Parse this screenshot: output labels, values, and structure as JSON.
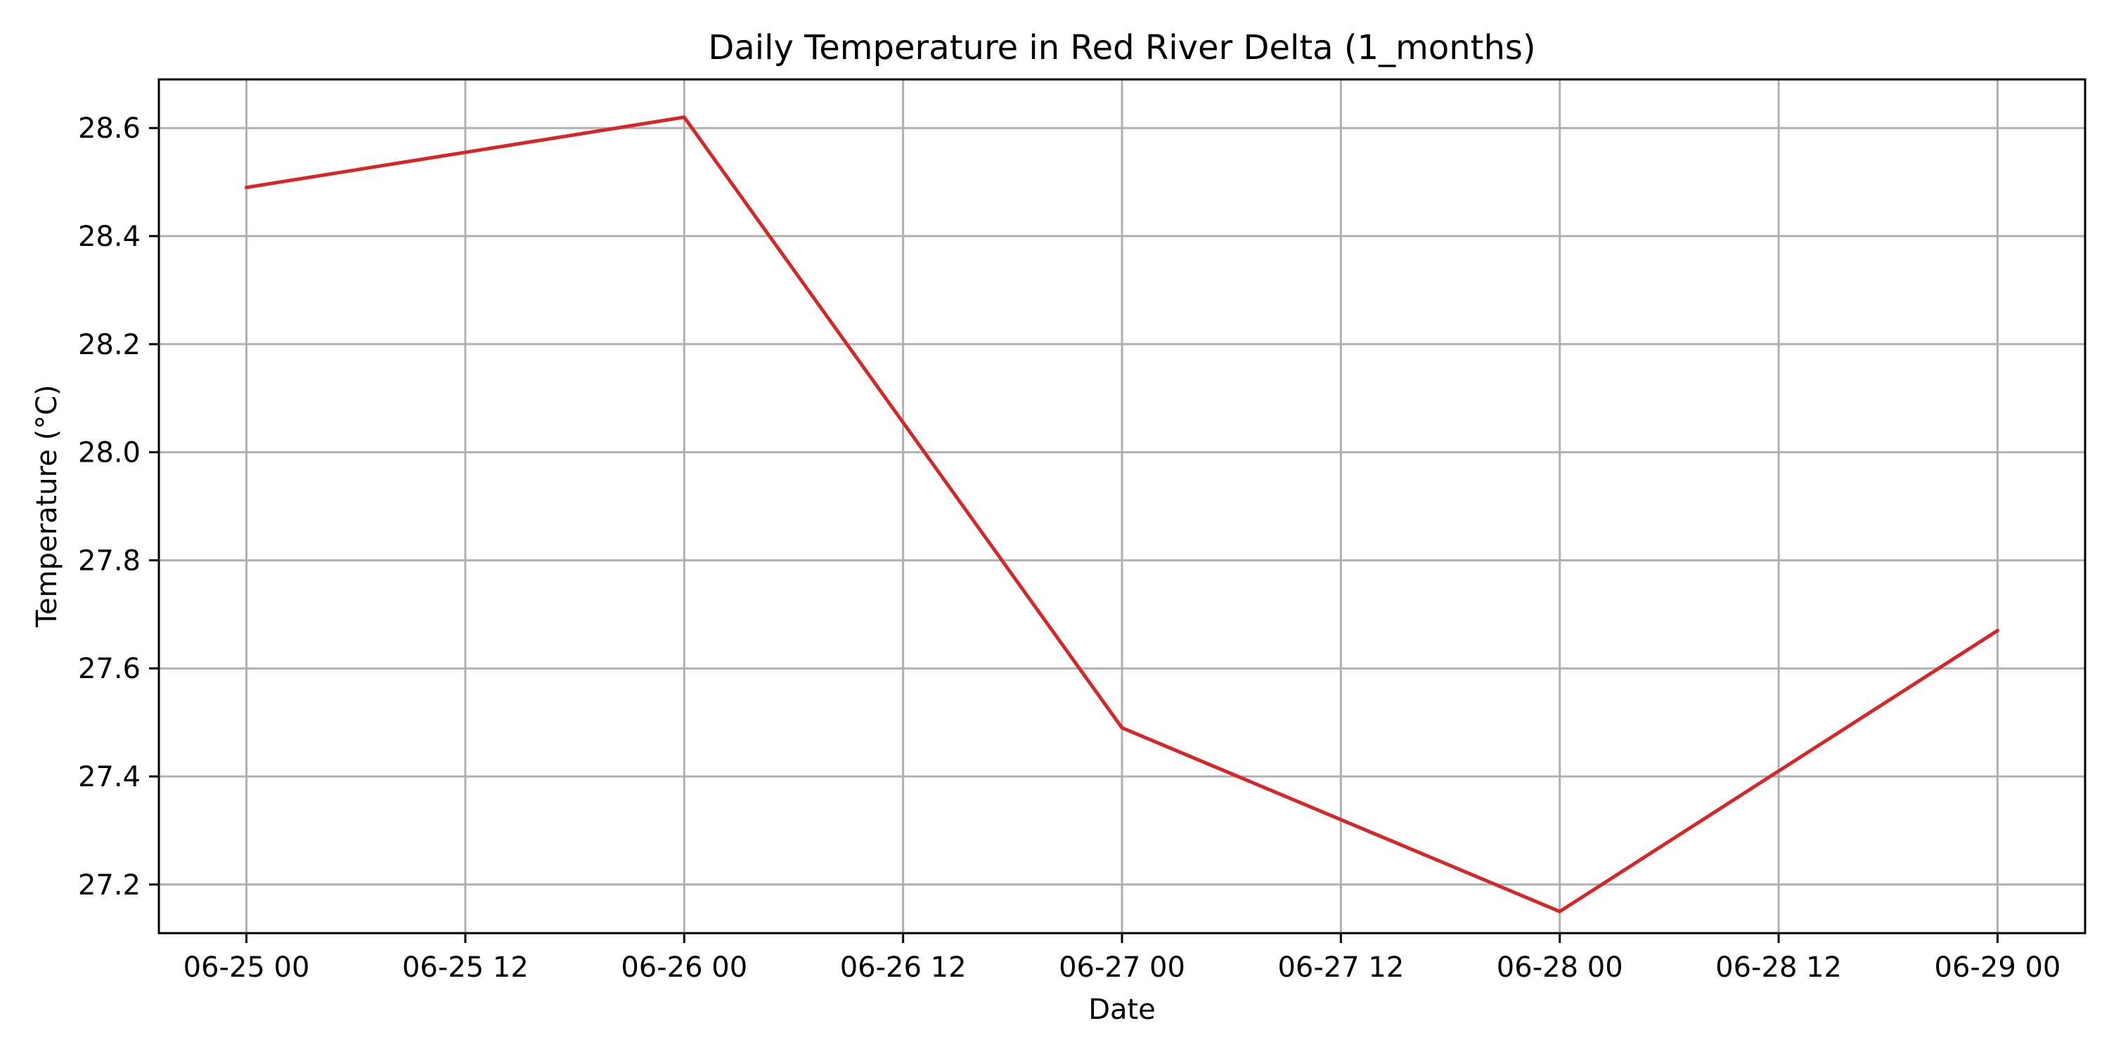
{
  "chart_data": {
    "type": "line",
    "title": "Daily Temperature in Red River Delta (1_months)",
    "xlabel": "Date",
    "ylabel": "Temperature (°C)",
    "x_tick_labels": [
      "06-25 00",
      "06-25 12",
      "06-26 00",
      "06-26 12",
      "06-27 00",
      "06-27 12",
      "06-28 00",
      "06-28 12",
      "06-29 00"
    ],
    "x_ticks": [
      "2023-06-25 00:00",
      "2023-06-25 12:00",
      "2023-06-26 00:00",
      "2023-06-26 12:00",
      "2023-06-27 00:00",
      "2023-06-27 12:00",
      "2023-06-28 00:00",
      "2023-06-28 12:00",
      "2023-06-29 00:00"
    ],
    "y_ticks": [
      27.2,
      27.4,
      27.6,
      27.8,
      28.0,
      28.2,
      28.4,
      28.6
    ],
    "y_tick_labels": [
      "27.2",
      "27.4",
      "27.6",
      "27.8",
      "28.0",
      "28.2",
      "28.4",
      "28.6"
    ],
    "xlim": [
      "2023-06-24 19:12",
      "2023-06-29 04:48"
    ],
    "ylim": [
      27.11,
      28.69
    ],
    "grid": true,
    "series": [
      {
        "color": "#d62728",
        "x": [
          "2023-06-25",
          "2023-06-26",
          "2023-06-27",
          "2023-06-28",
          "2023-06-29"
        ],
        "values": [
          28.49,
          28.62,
          27.49,
          27.15,
          27.67
        ]
      }
    ]
  }
}
